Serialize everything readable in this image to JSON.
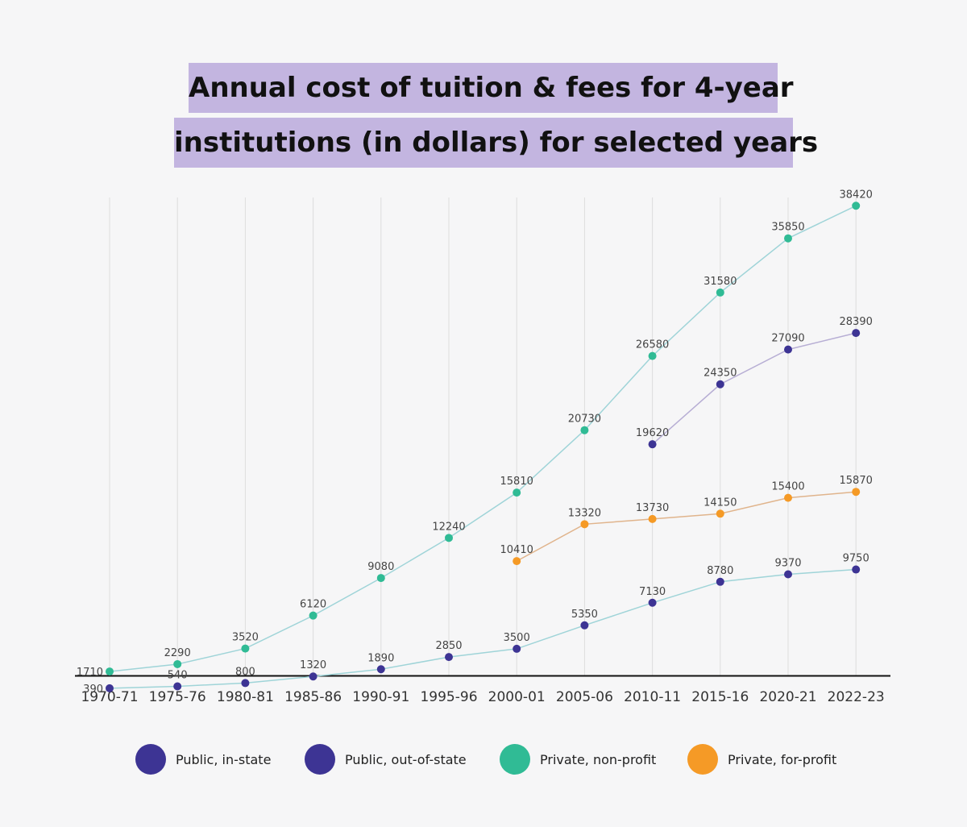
{
  "title_lines": [
    "Annual cost of tuition & fees for 4-year",
    "institutions (in dollars) for selected years"
  ],
  "colors": {
    "public_in": "#3d3494",
    "public_out": "#3d3494",
    "private_nonprofit": "#30bb95",
    "private_forprofit": "#f59a26",
    "line_teal": "#9fd4d8",
    "line_purple": "#b7aed4",
    "line_orange": "#e0b48c",
    "axis": "#111111",
    "grid": "#dddddd"
  },
  "legend": [
    {
      "label": "Public, in-state",
      "color": "#3d3494"
    },
    {
      "label": "Public, out-of-state",
      "color": "#3d3494"
    },
    {
      "label": "Private, non-profit",
      "color": "#30bb95"
    },
    {
      "label": "Private, for-profit",
      "color": "#f59a26"
    }
  ],
  "chart_data": {
    "type": "line",
    "title": "Annual cost of tuition & fees for 4-year institutions (in dollars) for selected years",
    "categories": [
      "1970-71",
      "1975-76",
      "1980-81",
      "1985-86",
      "1990-91",
      "1995-96",
      "2000-01",
      "2005-06",
      "2010-11",
      "2015-16",
      "2020-21",
      "2022-23"
    ],
    "grid": "vertical",
    "legend_position": "bottom",
    "series": [
      {
        "name": "Public, in-state",
        "values": [
          390,
          540,
          800,
          1320,
          1890,
          2850,
          3500,
          5350,
          7130,
          8780,
          9370,
          9750
        ]
      },
      {
        "name": "Public, out-of-state",
        "values": [
          null,
          null,
          null,
          null,
          null,
          null,
          null,
          null,
          19620,
          24350,
          27090,
          28390
        ]
      },
      {
        "name": "Private, non-profit",
        "values": [
          1710,
          2290,
          3520,
          6120,
          9080,
          12240,
          15810,
          20730,
          26580,
          31580,
          35850,
          38420
        ]
      },
      {
        "name": "Private, for-profit",
        "values": [
          null,
          null,
          null,
          null,
          null,
          null,
          10410,
          13320,
          13730,
          14150,
          15400,
          15870
        ]
      }
    ]
  }
}
